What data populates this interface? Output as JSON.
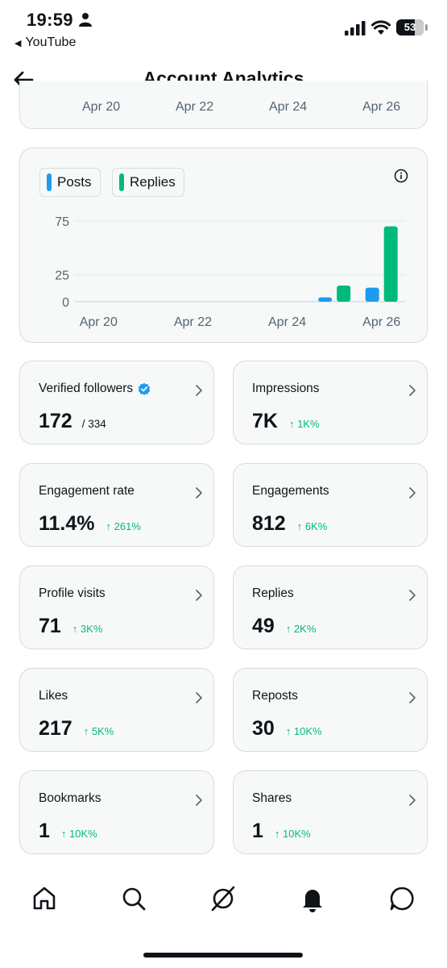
{
  "status_bar": {
    "time": "19:59",
    "back_app": "YouTube",
    "battery": "53"
  },
  "header": {
    "title": "Account Analytics"
  },
  "top_chart": {
    "tick_labels": [
      "Apr 20",
      "Apr 22",
      "Apr 24",
      "Apr 26"
    ]
  },
  "chart_data": {
    "type": "bar",
    "categories": [
      "Apr 20",
      "Apr 21",
      "Apr 22",
      "Apr 23",
      "Apr 24",
      "Apr 25",
      "Apr 26"
    ],
    "x_tick_labels": [
      "Apr 20",
      "Apr 22",
      "Apr 24",
      "Apr 26"
    ],
    "y_tick_labels": [
      "75",
      "25",
      "0"
    ],
    "ylim": [
      0,
      75
    ],
    "legend": [
      "Posts",
      "Replies"
    ],
    "series": [
      {
        "name": "Posts",
        "color": "#1d9bf0",
        "values": [
          0,
          0,
          0,
          0,
          0,
          4,
          13
        ]
      },
      {
        "name": "Replies",
        "color": "#00ba7c",
        "values": [
          0,
          0,
          0,
          0,
          0,
          15,
          70
        ]
      }
    ]
  },
  "stats": [
    {
      "label": "Verified followers",
      "value": "172",
      "sub": "/ 334",
      "change": "",
      "verified": true
    },
    {
      "label": "Impressions",
      "value": "7K",
      "sub": "",
      "change": "↑ 1K%"
    },
    {
      "label": "Engagement rate",
      "value": "11.4%",
      "sub": "",
      "change": "↑ 261%"
    },
    {
      "label": "Engagements",
      "value": "812",
      "sub": "",
      "change": "↑ 6K%"
    },
    {
      "label": "Profile visits",
      "value": "71",
      "sub": "",
      "change": "↑ 3K%"
    },
    {
      "label": "Replies",
      "value": "49",
      "sub": "",
      "change": "↑ 2K%"
    },
    {
      "label": "Likes",
      "value": "217",
      "sub": "",
      "change": "↑ 5K%"
    },
    {
      "label": "Reposts",
      "value": "30",
      "sub": "",
      "change": "↑ 10K%"
    },
    {
      "label": "Bookmarks",
      "value": "1",
      "sub": "",
      "change": "↑ 10K%"
    },
    {
      "label": "Shares",
      "value": "1",
      "sub": "",
      "change": "↑ 10K%"
    }
  ],
  "icons": {
    "nav": [
      "home-icon",
      "search-icon",
      "grok-icon",
      "notifications-icon",
      "messages-icon"
    ]
  },
  "colors": {
    "posts": "#1d9bf0",
    "replies": "#00ba7c",
    "positive_change": "#00ba7c",
    "card_bg": "#f7f9f9",
    "card_border": "#d7dcdf"
  }
}
